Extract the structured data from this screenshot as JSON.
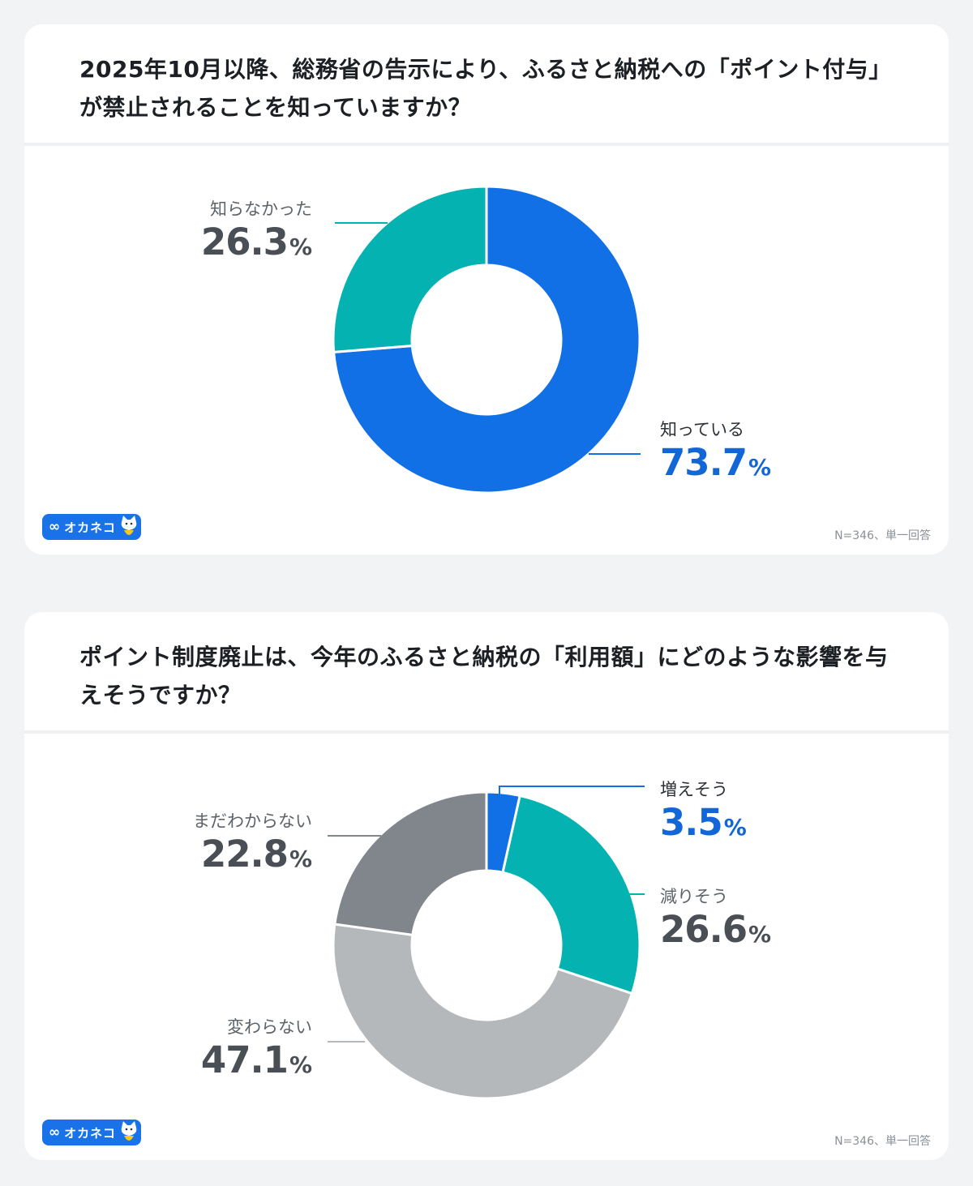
{
  "survey1": {
    "question": "2025年10月以降、総務省の告示により、ふるさと納税への「ポイント付与」が禁止されることを知っていますか？",
    "note": "N=346、単一回答",
    "labels": [
      {
        "name": "知っている",
        "value": "73.7",
        "pct": "%"
      },
      {
        "name": "知らなかった",
        "value": "26.3",
        "pct": "%"
      }
    ]
  },
  "survey2": {
    "question": "ポイント制度廃止は、今年のふるさと納税の「利用額」にどのような影響を与えそうですか？",
    "note": "N=346、単一回答",
    "labels": [
      {
        "name": "増えそう",
        "value": "3.5",
        "pct": "%"
      },
      {
        "name": "減りそう",
        "value": "26.6",
        "pct": "%"
      },
      {
        "name": "変わらない",
        "value": "47.1",
        "pct": "%"
      },
      {
        "name": "まだわからない",
        "value": "22.8",
        "pct": "%"
      }
    ]
  },
  "logo": {
    "text": "オカネコ",
    "inf": "∞"
  },
  "chart_data": [
    {
      "type": "pie",
      "title": "2025年10月以降、総務省の告示により、ふるさと納税への「ポイント付与」が禁止されることを知っていますか？",
      "categories": [
        "知っている",
        "知らなかった"
      ],
      "values": [
        73.7,
        26.3
      ],
      "colors": [
        "#1270e6",
        "#05b2b2"
      ],
      "unit": "%"
    },
    {
      "type": "pie",
      "title": "ポイント制度廃止は、今年のふるさと納税の「利用額」にどのような影響を与えそうですか？",
      "categories": [
        "増えそう",
        "減りそう",
        "変わらない",
        "まだわからない"
      ],
      "values": [
        3.5,
        26.6,
        47.1,
        22.8
      ],
      "colors": [
        "#1270e6",
        "#05b2b2",
        "#b4b8bb",
        "#80868b"
      ],
      "unit": "%"
    }
  ]
}
